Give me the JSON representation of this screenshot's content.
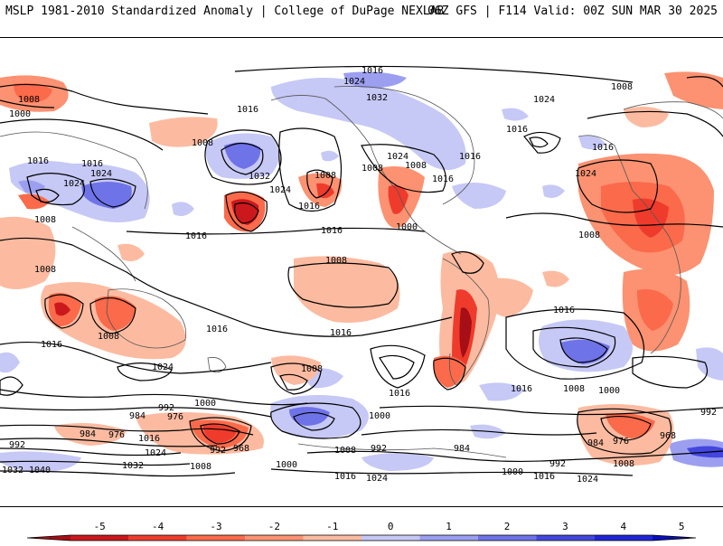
{
  "header": {
    "title": "MSLP 1981-2010 Standardized Anomaly | College of DuPage NEXLAB",
    "run_info": "06Z GFS | F114 Valid: 00Z SUN MAR 30 2025"
  },
  "colorbar": {
    "ticks": [
      "-5",
      "-4",
      "-3",
      "-2",
      "-1",
      "0",
      "1",
      "2",
      "3",
      "4",
      "5"
    ],
    "neg_colors": [
      "#a50f15",
      "#cb181d",
      "#ef3b2c",
      "#fb6a4a",
      "#fc9272",
      "#fcbba1"
    ],
    "pos_colors": [
      "#c6c8f5",
      "#9c9ff0",
      "#6f73e8",
      "#4347de",
      "#1f24d6",
      "#0a0fb8"
    ]
  },
  "isobar_labels": [
    "1016",
    "1008",
    "1000",
    "1024",
    "1032",
    "1024",
    "1016",
    "1008",
    "1016",
    "1024",
    "1016",
    "1032",
    "1024",
    "1008",
    "1016",
    "1016",
    "1008",
    "1024",
    "1008",
    "1016",
    "1016",
    "1016",
    "1016",
    "1008",
    "1024",
    "1008",
    "1000",
    "1008",
    "1016",
    "1016",
    "1016",
    "1008",
    "1016",
    "1024",
    "1008",
    "1016",
    "1016",
    "1024",
    "1000",
    "1008",
    "1016",
    "1008",
    "1000",
    "992",
    "984",
    "976",
    "968",
    "1000",
    "992",
    "1016",
    "984",
    "976",
    "1024",
    "1032",
    "1040",
    "1032",
    "992",
    "1008",
    "1000",
    "1008",
    "992",
    "984",
    "1000",
    "1016",
    "1024",
    "1008",
    "976",
    "968",
    "984",
    "992",
    "1016",
    "1024",
    "992",
    "1008"
  ]
}
